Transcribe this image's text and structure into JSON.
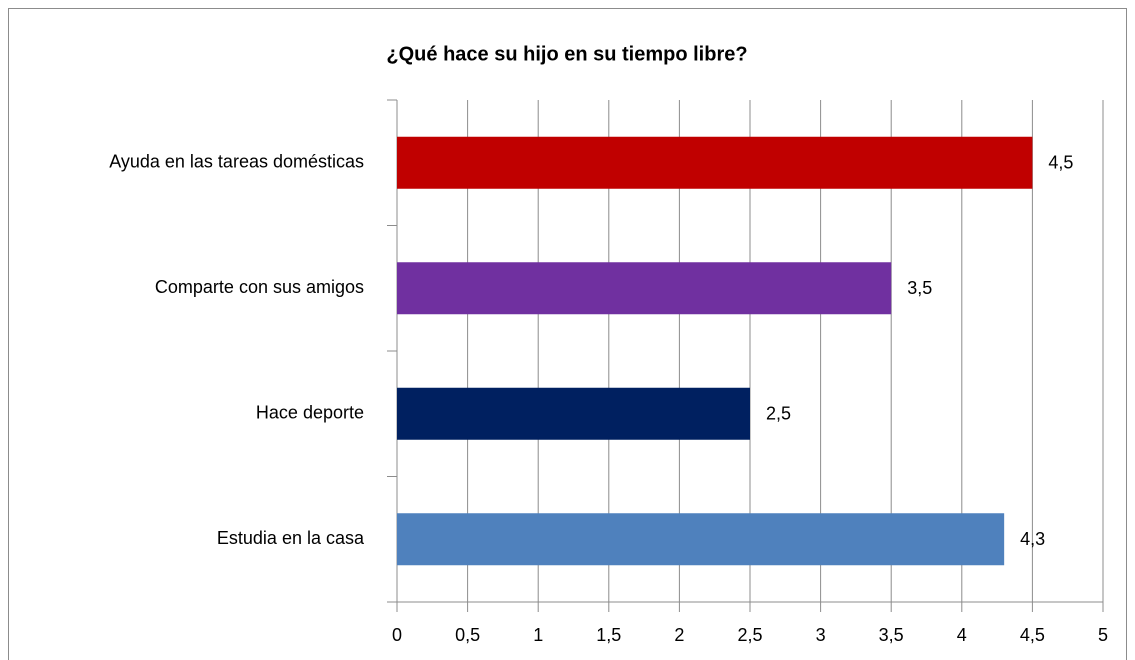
{
  "chart_data": {
    "type": "hbar",
    "title": "¿Qué hace su hijo en su tiempo libre?",
    "categories": [
      "Ayuda en las tareas domésticas",
      "Comparte con sus amigos",
      "Hace deporte",
      "Estudia en la casa"
    ],
    "values": [
      4.5,
      3.5,
      2.5,
      4.3
    ],
    "value_labels": [
      "4,5",
      "3,5",
      "2,5",
      "4,3"
    ],
    "colors": [
      "#c00000",
      "#7030a0",
      "#002060",
      "#4f81bd"
    ],
    "xlim": [
      0,
      5
    ],
    "xticks": [
      0,
      {
        "value": 0.5,
        "label": "0,5"
      },
      1,
      {
        "value": 1.5,
        "label": "1,5"
      },
      2,
      {
        "value": 2.5,
        "label": "2,5"
      },
      3,
      {
        "value": 3.5,
        "label": "3,5"
      },
      4,
      {
        "value": 4.5,
        "label": "4,5"
      },
      5
    ],
    "grid": true
  }
}
